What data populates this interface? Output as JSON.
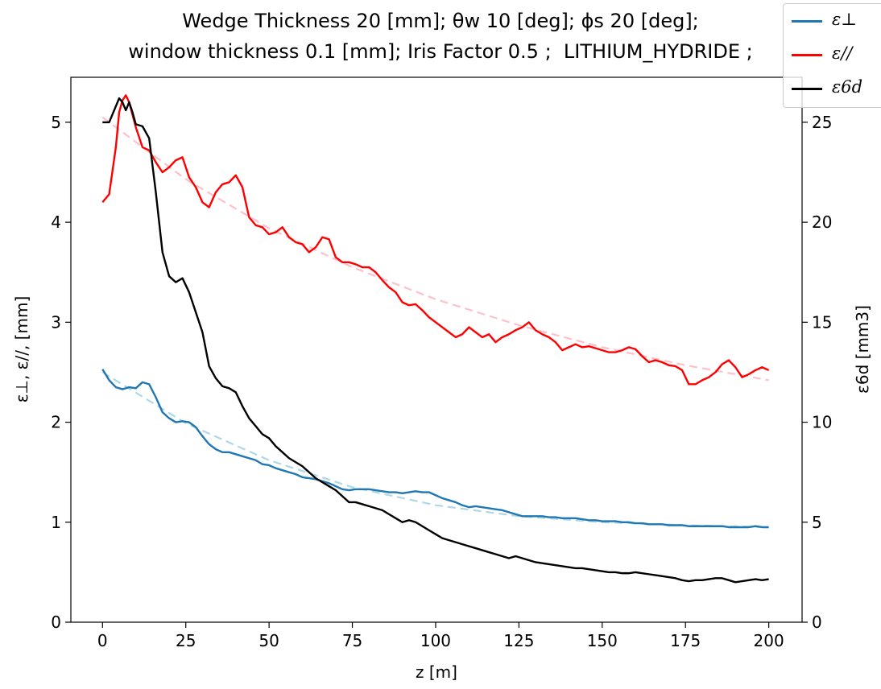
{
  "chart_data": {
    "type": "line",
    "title_lines": [
      "Wedge Thickness 20 [mm]; θw 10 [deg]; ϕs 20 [deg];",
      "window thickness 0.1 [mm]; Iris Factor 0.5 ;  LITHIUM_HYDRIDE ;"
    ],
    "xlabel": "z [m]",
    "ylabel_left": "ε⊥, ε//,  [mm]",
    "ylabel_right": "ε6d [mm3]",
    "xlim": [
      -9.5,
      210
    ],
    "ylim_left": [
      0,
      5.45
    ],
    "ylim_right": [
      0,
      27.25
    ],
    "x_ticks": [
      0,
      25,
      50,
      75,
      100,
      125,
      150,
      175,
      200
    ],
    "y_ticks_left": [
      0,
      1,
      2,
      3,
      4,
      5
    ],
    "y_ticks_right": [
      0,
      5,
      10,
      15,
      20,
      25
    ],
    "grid": false,
    "legend_position": "top-right outside",
    "series": [
      {
        "name": "ε⊥",
        "axis": "left",
        "color": "#1f77b4",
        "x": [
          0,
          2,
          4,
          6,
          8,
          10,
          12,
          14,
          16,
          18,
          20,
          22,
          24,
          26,
          28,
          30,
          32,
          34,
          36,
          38,
          40,
          42,
          44,
          46,
          48,
          50,
          52,
          54,
          56,
          58,
          60,
          62,
          64,
          66,
          68,
          70,
          72,
          74,
          76,
          78,
          80,
          82,
          84,
          86,
          88,
          90,
          92,
          94,
          96,
          98,
          100,
          102,
          104,
          106,
          108,
          110,
          112,
          114,
          116,
          118,
          120,
          122,
          124,
          126,
          128,
          130,
          132,
          134,
          136,
          138,
          140,
          142,
          144,
          146,
          148,
          150,
          152,
          154,
          156,
          158,
          160,
          162,
          164,
          166,
          168,
          170,
          172,
          174,
          176,
          178,
          180,
          182,
          184,
          186,
          188,
          190,
          192,
          194,
          196,
          198,
          200
        ],
        "values": [
          2.53,
          2.42,
          2.35,
          2.33,
          2.35,
          2.34,
          2.4,
          2.38,
          2.25,
          2.1,
          2.04,
          2.0,
          2.01,
          2.0,
          1.95,
          1.86,
          1.78,
          1.73,
          1.7,
          1.7,
          1.68,
          1.66,
          1.64,
          1.62,
          1.58,
          1.57,
          1.54,
          1.52,
          1.5,
          1.48,
          1.45,
          1.44,
          1.43,
          1.41,
          1.39,
          1.36,
          1.33,
          1.32,
          1.33,
          1.33,
          1.33,
          1.32,
          1.31,
          1.3,
          1.3,
          1.29,
          1.3,
          1.31,
          1.3,
          1.3,
          1.27,
          1.24,
          1.22,
          1.2,
          1.17,
          1.15,
          1.16,
          1.15,
          1.14,
          1.13,
          1.12,
          1.1,
          1.08,
          1.06,
          1.06,
          1.06,
          1.06,
          1.05,
          1.05,
          1.04,
          1.04,
          1.04,
          1.03,
          1.02,
          1.02,
          1.01,
          1.01,
          1.01,
          1.0,
          1.0,
          0.99,
          0.99,
          0.98,
          0.98,
          0.98,
          0.97,
          0.97,
          0.97,
          0.96,
          0.96,
          0.96,
          0.96,
          0.96,
          0.96,
          0.95,
          0.95,
          0.95,
          0.95,
          0.96,
          0.95,
          0.95
        ]
      },
      {
        "name": "ε//",
        "axis": "left",
        "color": "#ff0000",
        "x": [
          0,
          2,
          4,
          5,
          6,
          7,
          8,
          10,
          12,
          14,
          16,
          18,
          20,
          22,
          24,
          26,
          28,
          30,
          32,
          34,
          36,
          38,
          40,
          42,
          44,
          46,
          48,
          50,
          52,
          54,
          56,
          58,
          60,
          62,
          64,
          66,
          68,
          70,
          72,
          74,
          76,
          78,
          80,
          82,
          84,
          86,
          88,
          90,
          92,
          94,
          96,
          98,
          100,
          102,
          104,
          106,
          108,
          110,
          112,
          114,
          116,
          118,
          120,
          122,
          124,
          126,
          128,
          130,
          132,
          134,
          136,
          138,
          140,
          142,
          144,
          146,
          148,
          150,
          152,
          154,
          156,
          158,
          160,
          162,
          164,
          166,
          168,
          170,
          172,
          174,
          176,
          178,
          180,
          182,
          184,
          186,
          188,
          190,
          192,
          194,
          196,
          198,
          200
        ],
        "values": [
          4.2,
          4.28,
          4.75,
          5.1,
          5.22,
          5.27,
          5.2,
          4.95,
          4.75,
          4.72,
          4.6,
          4.5,
          4.55,
          4.62,
          4.65,
          4.45,
          4.35,
          4.2,
          4.15,
          4.3,
          4.38,
          4.4,
          4.47,
          4.35,
          4.05,
          3.97,
          3.95,
          3.88,
          3.9,
          3.95,
          3.85,
          3.8,
          3.78,
          3.7,
          3.75,
          3.85,
          3.83,
          3.65,
          3.6,
          3.6,
          3.58,
          3.55,
          3.55,
          3.5,
          3.42,
          3.35,
          3.3,
          3.2,
          3.17,
          3.18,
          3.12,
          3.05,
          3.0,
          2.95,
          2.9,
          2.85,
          2.88,
          2.95,
          2.9,
          2.85,
          2.88,
          2.8,
          2.85,
          2.88,
          2.92,
          2.95,
          3.0,
          2.92,
          2.88,
          2.85,
          2.8,
          2.72,
          2.75,
          2.78,
          2.75,
          2.76,
          2.74,
          2.72,
          2.7,
          2.7,
          2.72,
          2.75,
          2.73,
          2.66,
          2.6,
          2.62,
          2.6,
          2.57,
          2.56,
          2.52,
          2.38,
          2.38,
          2.42,
          2.45,
          2.5,
          2.58,
          2.62,
          2.55,
          2.45,
          2.48,
          2.52,
          2.55,
          2.52
        ]
      },
      {
        "name": "ε6d",
        "axis": "right",
        "color": "#000000",
        "x": [
          0,
          2,
          4,
          5,
          6,
          7,
          8,
          9,
          10,
          12,
          14,
          16,
          18,
          20,
          22,
          24,
          26,
          28,
          30,
          32,
          34,
          36,
          38,
          40,
          42,
          44,
          46,
          48,
          50,
          52,
          54,
          56,
          58,
          60,
          62,
          64,
          66,
          68,
          70,
          72,
          74,
          76,
          78,
          80,
          82,
          84,
          86,
          88,
          90,
          92,
          94,
          96,
          98,
          100,
          102,
          104,
          106,
          108,
          110,
          112,
          114,
          116,
          118,
          120,
          122,
          124,
          126,
          128,
          130,
          132,
          134,
          136,
          138,
          140,
          142,
          144,
          146,
          148,
          150,
          152,
          154,
          156,
          158,
          160,
          162,
          164,
          166,
          168,
          170,
          172,
          174,
          176,
          178,
          180,
          182,
          184,
          186,
          188,
          190,
          192,
          194,
          196,
          198,
          200
        ],
        "values": [
          25.0,
          25.0,
          25.8,
          26.2,
          26.0,
          25.6,
          26.0,
          25.5,
          24.9,
          24.8,
          24.2,
          21.5,
          18.5,
          17.3,
          17.0,
          17.2,
          16.5,
          15.5,
          14.5,
          12.8,
          12.2,
          11.8,
          11.7,
          11.5,
          10.8,
          10.2,
          9.8,
          9.4,
          9.2,
          8.8,
          8.5,
          8.2,
          8.0,
          7.8,
          7.5,
          7.2,
          7.0,
          6.8,
          6.6,
          6.3,
          6.0,
          6.0,
          5.9,
          5.8,
          5.7,
          5.6,
          5.4,
          5.2,
          5.0,
          5.1,
          5.0,
          4.8,
          4.6,
          4.4,
          4.2,
          4.1,
          4.0,
          3.9,
          3.8,
          3.7,
          3.6,
          3.5,
          3.4,
          3.3,
          3.2,
          3.3,
          3.2,
          3.1,
          3.0,
          2.95,
          2.9,
          2.85,
          2.8,
          2.75,
          2.7,
          2.7,
          2.65,
          2.6,
          2.55,
          2.5,
          2.5,
          2.45,
          2.45,
          2.5,
          2.45,
          2.4,
          2.35,
          2.3,
          2.25,
          2.2,
          2.1,
          2.05,
          2.1,
          2.1,
          2.15,
          2.2,
          2.2,
          2.1,
          2.0,
          2.05,
          2.1,
          2.15,
          2.1,
          2.15
        ]
      }
    ],
    "fits": [
      {
        "of": "ε⊥",
        "color": "#add8e6",
        "style": "dashed",
        "x": [
          0,
          25,
          50,
          75,
          100,
          125,
          150,
          175,
          200
        ],
        "values": [
          2.5,
          1.99,
          1.62,
          1.35,
          1.17,
          1.06,
          1.0,
          0.97,
          0.95
        ]
      },
      {
        "of": "ε//",
        "color": "#ffc0cb",
        "style": "dashed",
        "x": [
          0,
          25,
          50,
          75,
          100,
          125,
          150,
          175,
          200
        ],
        "values": [
          5.05,
          4.43,
          3.94,
          3.55,
          3.23,
          2.97,
          2.75,
          2.57,
          2.42
        ]
      }
    ]
  }
}
